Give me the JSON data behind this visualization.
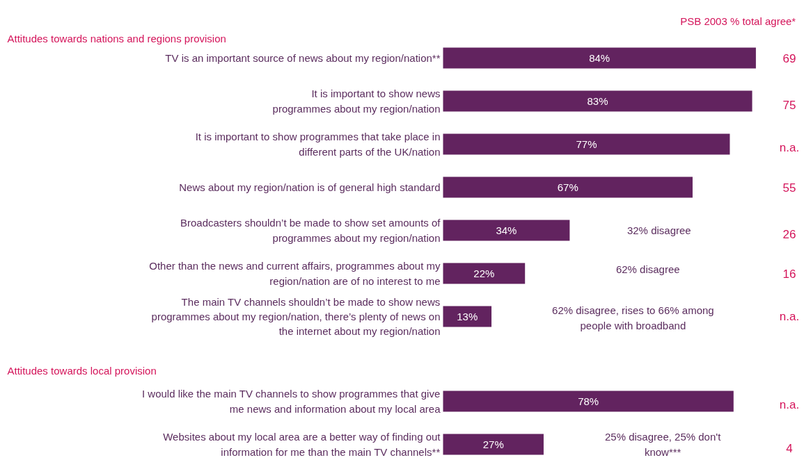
{
  "chart_data": {
    "type": "bar",
    "orientation": "horizontal",
    "categories": [
      "TV is an important source of news about my region/nation**",
      "It is important to show news\nprogrammes about my region/nation",
      "It is important to show programmes that take place in\ndifferent parts of the UK/nation",
      "News about my region/nation is of general high standard",
      "Broadcasters shouldn’t be made to show set amounts of\nprogrammes about my region/nation",
      "Other than the news and current affairs, programmes about my\nregion/nation are of no interest to me",
      "The main TV channels shouldn’t be made to show news\nprogrammes about my region/nation, there’s plenty of news on\nthe internet about my region/nation",
      "I would like the main TV channels to show programmes that give\nme news and information about my local area",
      "Websites about my local area are a better way of finding out\ninformation for me than the main TV channels**"
    ],
    "values": [
      84,
      83,
      77,
      67,
      34,
      22,
      13,
      78,
      27
    ],
    "color": "#62235f",
    "value_labels": [
      "84%",
      "83%",
      "77%",
      "67%",
      "34%",
      "22%",
      "13%",
      "78%",
      "27%"
    ],
    "annotations": [
      "Attitudes towards nations and regions provision",
      "Attitudes towards local provision",
      "PSB 2003   % total agree*",
      "32% disagree",
      "62% disagree",
      "62% disagree, rises to 66% among\npeople with broadband",
      "25% disagree, 25% don't\nknow***",
      "69",
      "75",
      "n.a.",
      "55",
      "26",
      "16",
      "n.a.",
      "n.a.",
      "4"
    ]
  }
}
